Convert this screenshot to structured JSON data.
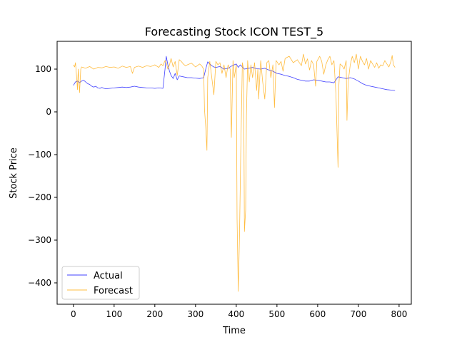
{
  "chart_data": {
    "type": "line",
    "title": "Forecasting Stock ICON TEST_5",
    "xlabel": "Time",
    "ylabel": "Stock Price",
    "xlim": [
      -40,
      830
    ],
    "ylim": [
      -450,
      165
    ],
    "xticks": [
      0,
      100,
      200,
      300,
      400,
      500,
      600,
      700,
      800
    ],
    "yticks": [
      -400,
      -300,
      -200,
      -100,
      0,
      100
    ],
    "ytick_labels": [
      "−400",
      "−300",
      "−200",
      "−100",
      "0",
      "100"
    ],
    "legend_position": "lower-left",
    "series": [
      {
        "name": "Actual",
        "color": "#0000ff",
        "points": [
          [
            0,
            62
          ],
          [
            5,
            70
          ],
          [
            10,
            72
          ],
          [
            15,
            68
          ],
          [
            20,
            72
          ],
          [
            25,
            74
          ],
          [
            30,
            70
          ],
          [
            35,
            66
          ],
          [
            40,
            64
          ],
          [
            45,
            60
          ],
          [
            50,
            58
          ],
          [
            55,
            60
          ],
          [
            60,
            56
          ],
          [
            65,
            55
          ],
          [
            70,
            57
          ],
          [
            75,
            55
          ],
          [
            80,
            54
          ],
          [
            90,
            55
          ],
          [
            100,
            56
          ],
          [
            110,
            57
          ],
          [
            120,
            58
          ],
          [
            130,
            57
          ],
          [
            140,
            58
          ],
          [
            150,
            60
          ],
          [
            160,
            58
          ],
          [
            170,
            57
          ],
          [
            180,
            56
          ],
          [
            190,
            56
          ],
          [
            200,
            55
          ],
          [
            210,
            56
          ],
          [
            220,
            55
          ],
          [
            225,
            100
          ],
          [
            228,
            130
          ],
          [
            232,
            110
          ],
          [
            236,
            95
          ],
          [
            240,
            85
          ],
          [
            245,
            78
          ],
          [
            250,
            90
          ],
          [
            255,
            75
          ],
          [
            260,
            84
          ],
          [
            270,
            82
          ],
          [
            280,
            80
          ],
          [
            290,
            80
          ],
          [
            300,
            79
          ],
          [
            310,
            78
          ],
          [
            320,
            80
          ],
          [
            325,
            100
          ],
          [
            330,
            117
          ],
          [
            335,
            112
          ],
          [
            340,
            108
          ],
          [
            345,
            105
          ],
          [
            350,
            104
          ],
          [
            360,
            106
          ],
          [
            370,
            100
          ],
          [
            380,
            102
          ],
          [
            390,
            108
          ],
          [
            400,
            112
          ],
          [
            405,
            104
          ],
          [
            410,
            110
          ],
          [
            420,
            100
          ],
          [
            430,
            102
          ],
          [
            440,
            104
          ],
          [
            450,
            101
          ],
          [
            460,
            100
          ],
          [
            470,
            102
          ],
          [
            480,
            98
          ],
          [
            490,
            95
          ],
          [
            500,
            90
          ],
          [
            510,
            88
          ],
          [
            520,
            85
          ],
          [
            530,
            83
          ],
          [
            540,
            80
          ],
          [
            550,
            76
          ],
          [
            560,
            74
          ],
          [
            570,
            72
          ],
          [
            580,
            72
          ],
          [
            590,
            75
          ],
          [
            600,
            74
          ],
          [
            610,
            72
          ],
          [
            620,
            70
          ],
          [
            630,
            70
          ],
          [
            640,
            68
          ],
          [
            650,
            82
          ],
          [
            660,
            80
          ],
          [
            670,
            78
          ],
          [
            680,
            80
          ],
          [
            690,
            77
          ],
          [
            700,
            72
          ],
          [
            710,
            66
          ],
          [
            720,
            62
          ],
          [
            730,
            60
          ],
          [
            740,
            58
          ],
          [
            750,
            56
          ],
          [
            760,
            54
          ],
          [
            770,
            52
          ],
          [
            780,
            51
          ],
          [
            790,
            50
          ]
        ]
      },
      {
        "name": "Forecast",
        "color": "#ffa500",
        "points": [
          [
            0,
            110
          ],
          [
            3,
            105
          ],
          [
            5,
            115
          ],
          [
            8,
            80
          ],
          [
            10,
            52
          ],
          [
            12,
            100
          ],
          [
            15,
            45
          ],
          [
            18,
            100
          ],
          [
            20,
            105
          ],
          [
            30,
            102
          ],
          [
            40,
            106
          ],
          [
            50,
            100
          ],
          [
            60,
            104
          ],
          [
            70,
            103
          ],
          [
            80,
            106
          ],
          [
            90,
            104
          ],
          [
            100,
            105
          ],
          [
            110,
            102
          ],
          [
            120,
            107
          ],
          [
            130,
            104
          ],
          [
            140,
            106
          ],
          [
            145,
            90
          ],
          [
            150,
            104
          ],
          [
            160,
            107
          ],
          [
            170,
            104
          ],
          [
            180,
            108
          ],
          [
            190,
            106
          ],
          [
            200,
            110
          ],
          [
            210,
            104
          ],
          [
            215,
            112
          ],
          [
            220,
            108
          ],
          [
            225,
            120
          ],
          [
            228,
            115
          ],
          [
            232,
            100
          ],
          [
            236,
            110
          ],
          [
            240,
            125
          ],
          [
            245,
            105
          ],
          [
            250,
            118
          ],
          [
            255,
            85
          ],
          [
            260,
            122
          ],
          [
            265,
            118
          ],
          [
            270,
            112
          ],
          [
            275,
            108
          ],
          [
            280,
            110
          ],
          [
            290,
            114
          ],
          [
            300,
            105
          ],
          [
            310,
            112
          ],
          [
            315,
            108
          ],
          [
            320,
            100
          ],
          [
            322,
            5
          ],
          [
            325,
            -35
          ],
          [
            328,
            -90
          ],
          [
            330,
            80
          ],
          [
            335,
            118
          ],
          [
            340,
            80
          ],
          [
            345,
            40
          ],
          [
            350,
            118
          ],
          [
            355,
            110
          ],
          [
            360,
            115
          ],
          [
            365,
            90
          ],
          [
            370,
            110
          ],
          [
            375,
            80
          ],
          [
            380,
            110
          ],
          [
            385,
            100
          ],
          [
            388,
            -60
          ],
          [
            392,
            120
          ],
          [
            395,
            80
          ],
          [
            400,
            110
          ],
          [
            402,
            -250
          ],
          [
            405,
            -420
          ],
          [
            408,
            -290
          ],
          [
            411,
            -100
          ],
          [
            415,
            115
          ],
          [
            418,
            100
          ],
          [
            420,
            -280
          ],
          [
            423,
            -230
          ],
          [
            425,
            -10
          ],
          [
            428,
            120
          ],
          [
            432,
            70
          ],
          [
            436,
            110
          ],
          [
            440,
            80
          ],
          [
            445,
            115
          ],
          [
            450,
            50
          ],
          [
            453,
            100
          ],
          [
            455,
            30
          ],
          [
            460,
            120
          ],
          [
            465,
            70
          ],
          [
            470,
            30
          ],
          [
            475,
            115
          ],
          [
            480,
            120
          ],
          [
            485,
            80
          ],
          [
            490,
            110
          ],
          [
            494,
            10
          ],
          [
            498,
            120
          ],
          [
            505,
            110
          ],
          [
            510,
            118
          ],
          [
            515,
            95
          ],
          [
            520,
            125
          ],
          [
            530,
            130
          ],
          [
            540,
            115
          ],
          [
            550,
            122
          ],
          [
            560,
            108
          ],
          [
            565,
            135
          ],
          [
            570,
            112
          ],
          [
            575,
            124
          ],
          [
            580,
            98
          ],
          [
            585,
            120
          ],
          [
            590,
            110
          ],
          [
            595,
            60
          ],
          [
            598,
            118
          ],
          [
            605,
            130
          ],
          [
            610,
            118
          ],
          [
            615,
            88
          ],
          [
            620,
            110
          ],
          [
            625,
            122
          ],
          [
            630,
            130
          ],
          [
            635,
            110
          ],
          [
            640,
            120
          ],
          [
            645,
            40
          ],
          [
            648,
            -60
          ],
          [
            650,
            -130
          ],
          [
            652,
            60
          ],
          [
            655,
            112
          ],
          [
            660,
            108
          ],
          [
            665,
            100
          ],
          [
            670,
            120
          ],
          [
            672,
            -20
          ],
          [
            675,
            70
          ],
          [
            680,
            110
          ],
          [
            685,
            130
          ],
          [
            690,
            115
          ],
          [
            695,
            135
          ],
          [
            700,
            100
          ],
          [
            705,
            130
          ],
          [
            710,
            118
          ],
          [
            715,
            110
          ],
          [
            720,
            125
          ],
          [
            725,
            100
          ],
          [
            730,
            120
          ],
          [
            735,
            112
          ],
          [
            740,
            104
          ],
          [
            745,
            115
          ],
          [
            750,
            102
          ],
          [
            755,
            110
          ],
          [
            760,
            108
          ],
          [
            765,
            120
          ],
          [
            770,
            112
          ],
          [
            775,
            105
          ],
          [
            780,
            118
          ],
          [
            783,
            132
          ],
          [
            786,
            110
          ],
          [
            790,
            104
          ]
        ]
      }
    ]
  }
}
